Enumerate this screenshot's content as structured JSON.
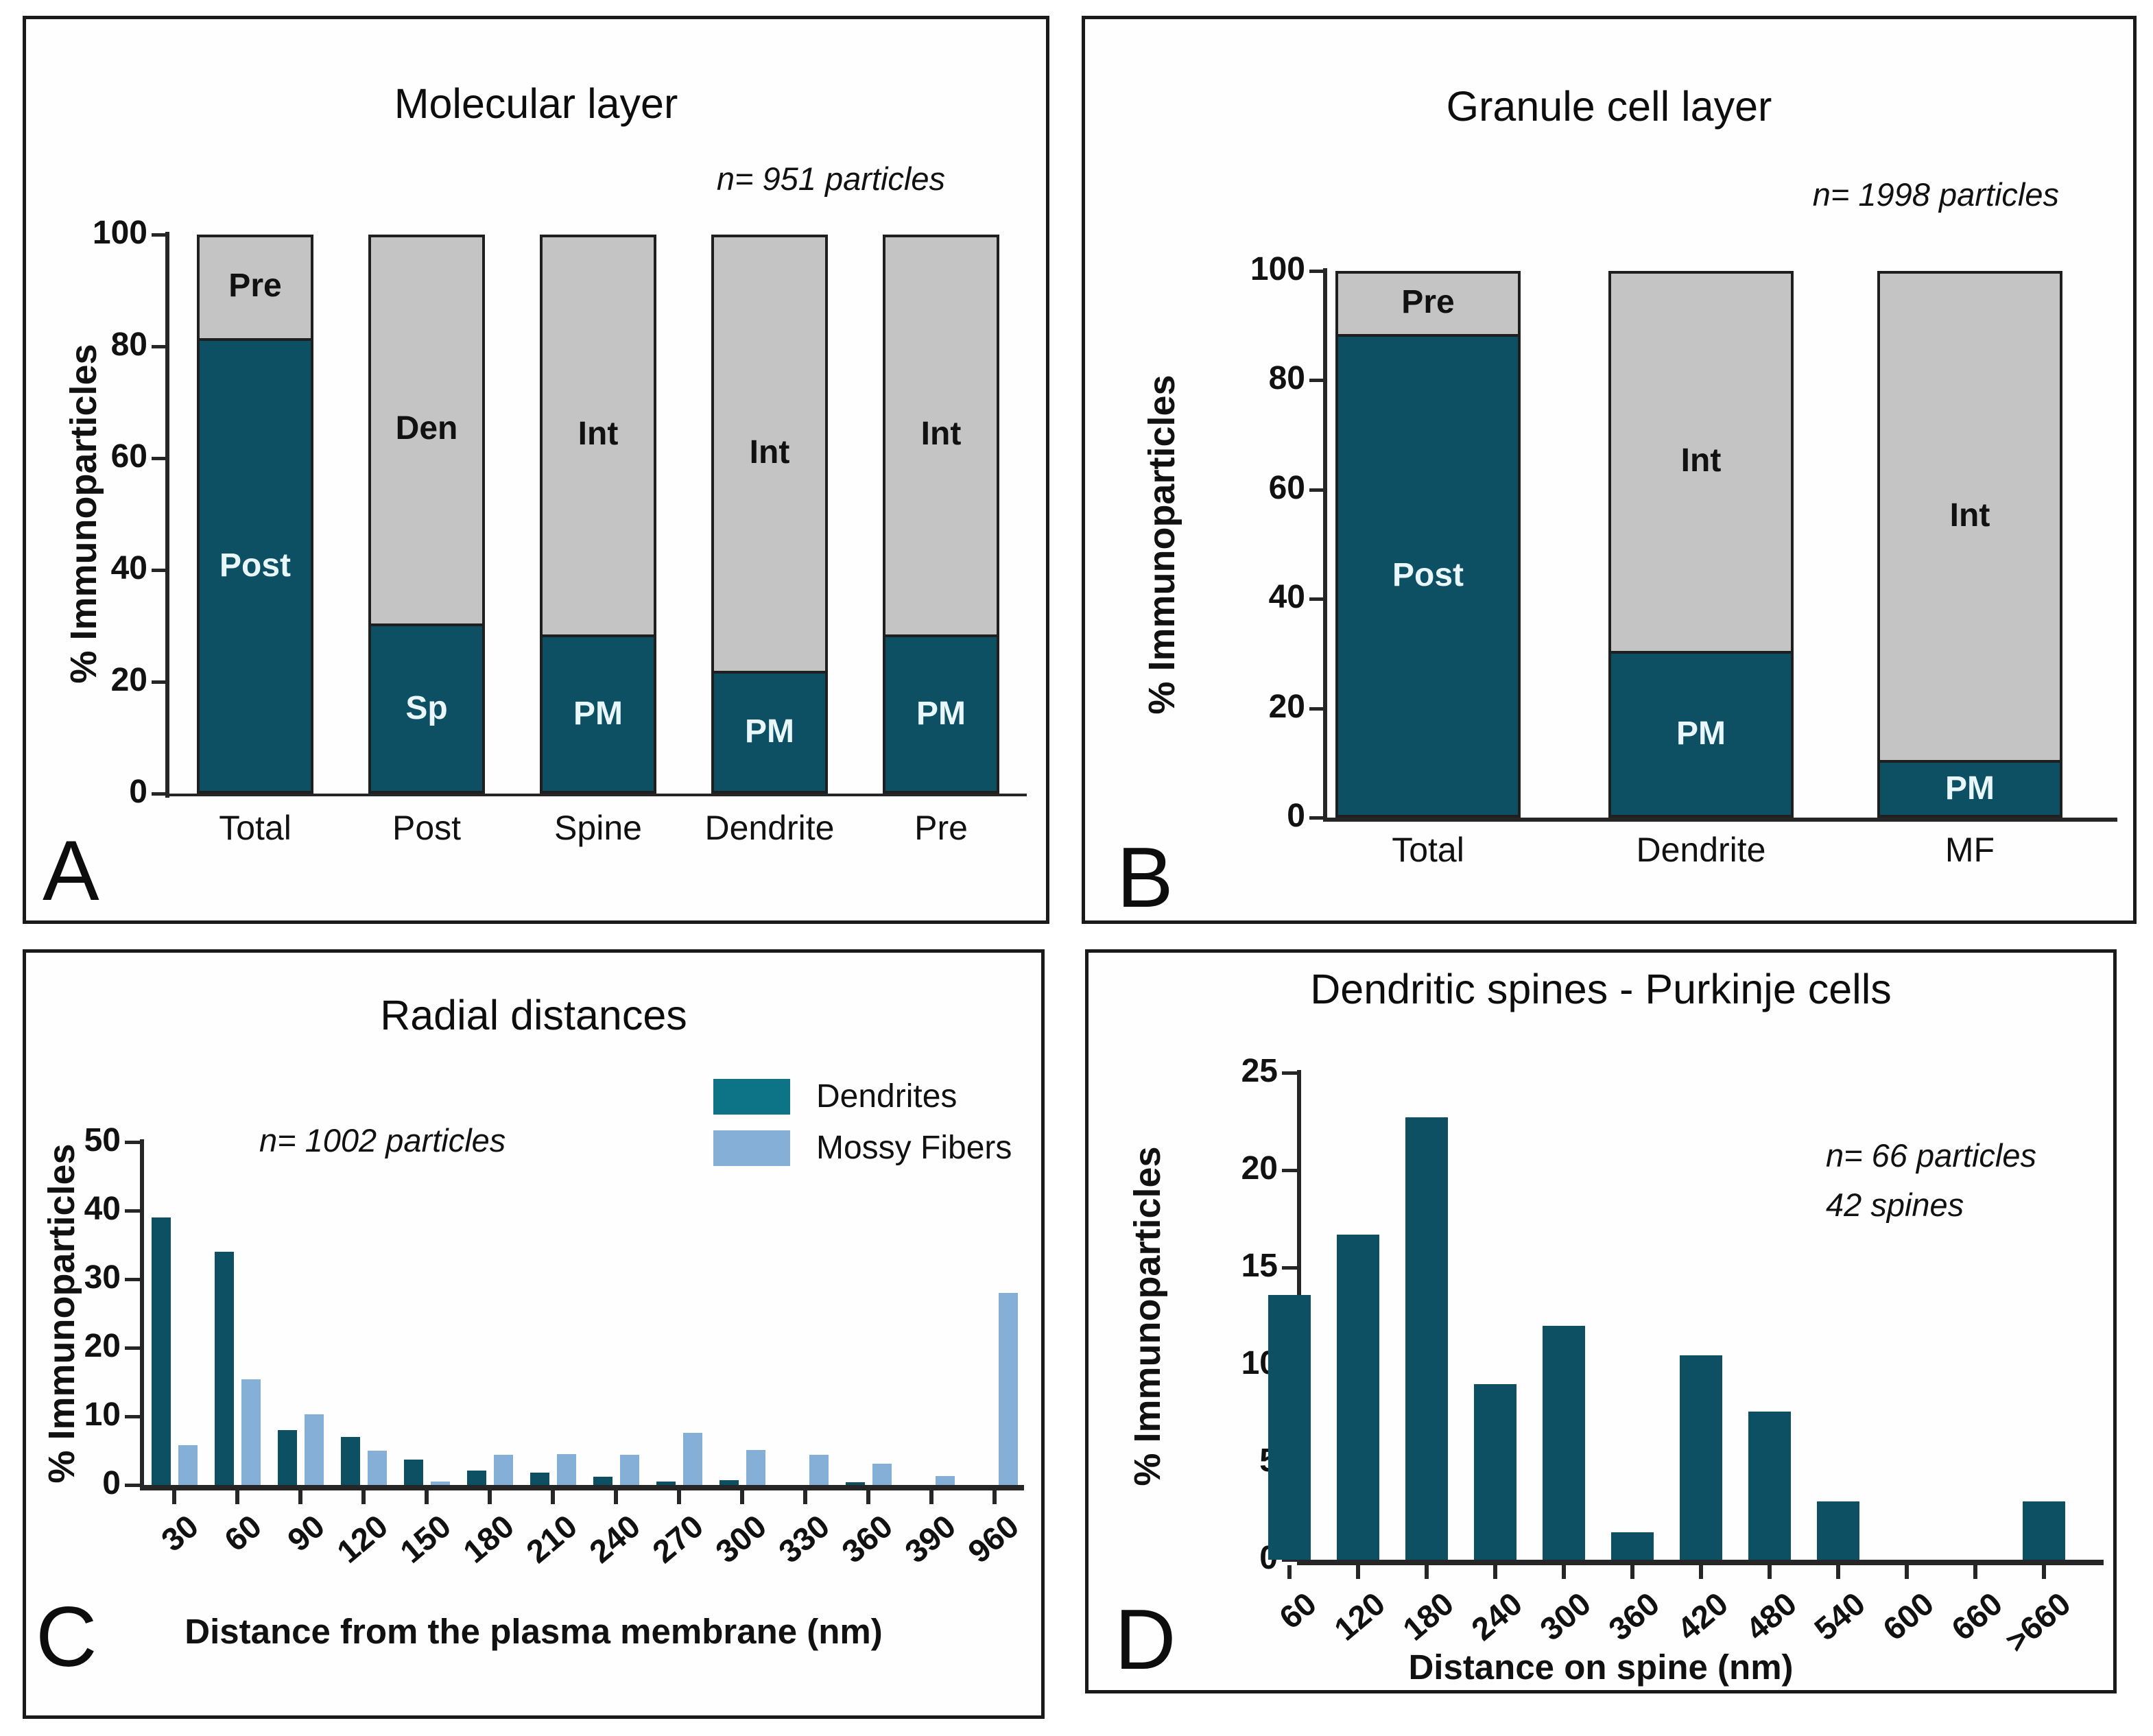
{
  "chart_data": [
    {
      "panel": "A",
      "type": "bar",
      "subtype": "stacked",
      "title": "Molecular layer",
      "n_label": "n= 951 particles",
      "ylabel": "% Immunoparticles",
      "ylim": [
        0,
        100
      ],
      "yticks": [
        0,
        20,
        40,
        60,
        80,
        100
      ],
      "categories": [
        "Total",
        "Post",
        "Spine",
        "Dendrite",
        "Pre"
      ],
      "series": [
        {
          "name": "plasma membrane / dark segment",
          "color": "#0d4f63",
          "label_text_color": "#e9f6fa",
          "values": [
            81,
            30,
            28,
            21.5,
            28
          ],
          "segment_labels": [
            "Post",
            "Sp",
            "PM",
            "PM",
            "PM"
          ]
        },
        {
          "name": "other / gray segment",
          "color": "#c4c4c4",
          "label_text_color": "#111111",
          "values": [
            19,
            70,
            72,
            78.5,
            72
          ],
          "segment_labels": [
            "Pre",
            "Den",
            "Int",
            "Int",
            "Int"
          ]
        }
      ],
      "grid": false,
      "legend_position": "none"
    },
    {
      "panel": "B",
      "type": "bar",
      "subtype": "stacked",
      "title": "Granule cell layer",
      "n_label": "n= 1998 particles",
      "ylabel": "% Immunoparticles",
      "ylim": [
        0,
        100
      ],
      "yticks": [
        0,
        20,
        40,
        60,
        80,
        100
      ],
      "categories": [
        "Total",
        "Dendrite",
        "MF"
      ],
      "series": [
        {
          "name": "plasma membrane / dark segment",
          "color": "#0d4f63",
          "label_text_color": "#e9f6fa",
          "values": [
            88,
            30,
            10
          ],
          "segment_labels": [
            "Post",
            "PM",
            "PM"
          ]
        },
        {
          "name": "other / gray segment",
          "color": "#c4c4c4",
          "label_text_color": "#111111",
          "values": [
            12,
            70,
            90
          ],
          "segment_labels": [
            "Pre",
            "Int",
            "Int"
          ]
        }
      ],
      "grid": false,
      "legend_position": "none"
    },
    {
      "panel": "C",
      "type": "bar",
      "subtype": "grouped",
      "title": "Radial distances",
      "n_label": "n= 1002 particles",
      "ylabel": "% Immunoparticles",
      "xlabel": "Distance from the plasma membrane (nm)",
      "ylim": [
        0,
        50
      ],
      "yticks": [
        0,
        10,
        20,
        30,
        40,
        50
      ],
      "categories": [
        "30",
        "60",
        "90",
        "120",
        "150",
        "180",
        "210",
        "240",
        "270",
        "300",
        "330",
        "360",
        "390",
        "960"
      ],
      "series": [
        {
          "name": "Dendrites",
          "color": "#0d4f63",
          "legend_swatch_color": "#0d7488",
          "values": [
            39,
            34,
            8,
            7,
            3.7,
            2.1,
            1.8,
            1.2,
            0.5,
            0.7,
            0,
            0.4,
            0,
            0
          ]
        },
        {
          "name": "Mossy Fibers",
          "color": "#85afd6",
          "legend_swatch_color": "#85afd6",
          "values": [
            5.8,
            15.4,
            10.3,
            5,
            0.5,
            4.4,
            4.5,
            4.4,
            7.6,
            5.1,
            4.4,
            3.1,
            1.3,
            28
          ]
        }
      ],
      "grid": false,
      "legend_position": "top-right"
    },
    {
      "panel": "D",
      "type": "bar",
      "subtype": "single",
      "title": "Dendritic spines - Purkinje cells",
      "n_label": "n= 66 particles",
      "n_label2": "42 spines",
      "ylabel": "% Immunoparticles",
      "xlabel": "Distance on spine (nm)",
      "ylim": [
        0,
        25
      ],
      "yticks": [
        0,
        5,
        10,
        15,
        20,
        25
      ],
      "categories": [
        "60",
        "120",
        "180",
        "240",
        "300",
        "360",
        "420",
        "480",
        "540",
        "600",
        "660",
        ">660"
      ],
      "series": [
        {
          "name": "Purkinje cell spines",
          "color": "#0d4f63",
          "values": [
            13.6,
            16.7,
            22.7,
            9,
            12,
            1.4,
            10.5,
            7.6,
            3,
            0,
            0,
            3
          ]
        }
      ],
      "grid": false,
      "legend_position": "none"
    }
  ]
}
